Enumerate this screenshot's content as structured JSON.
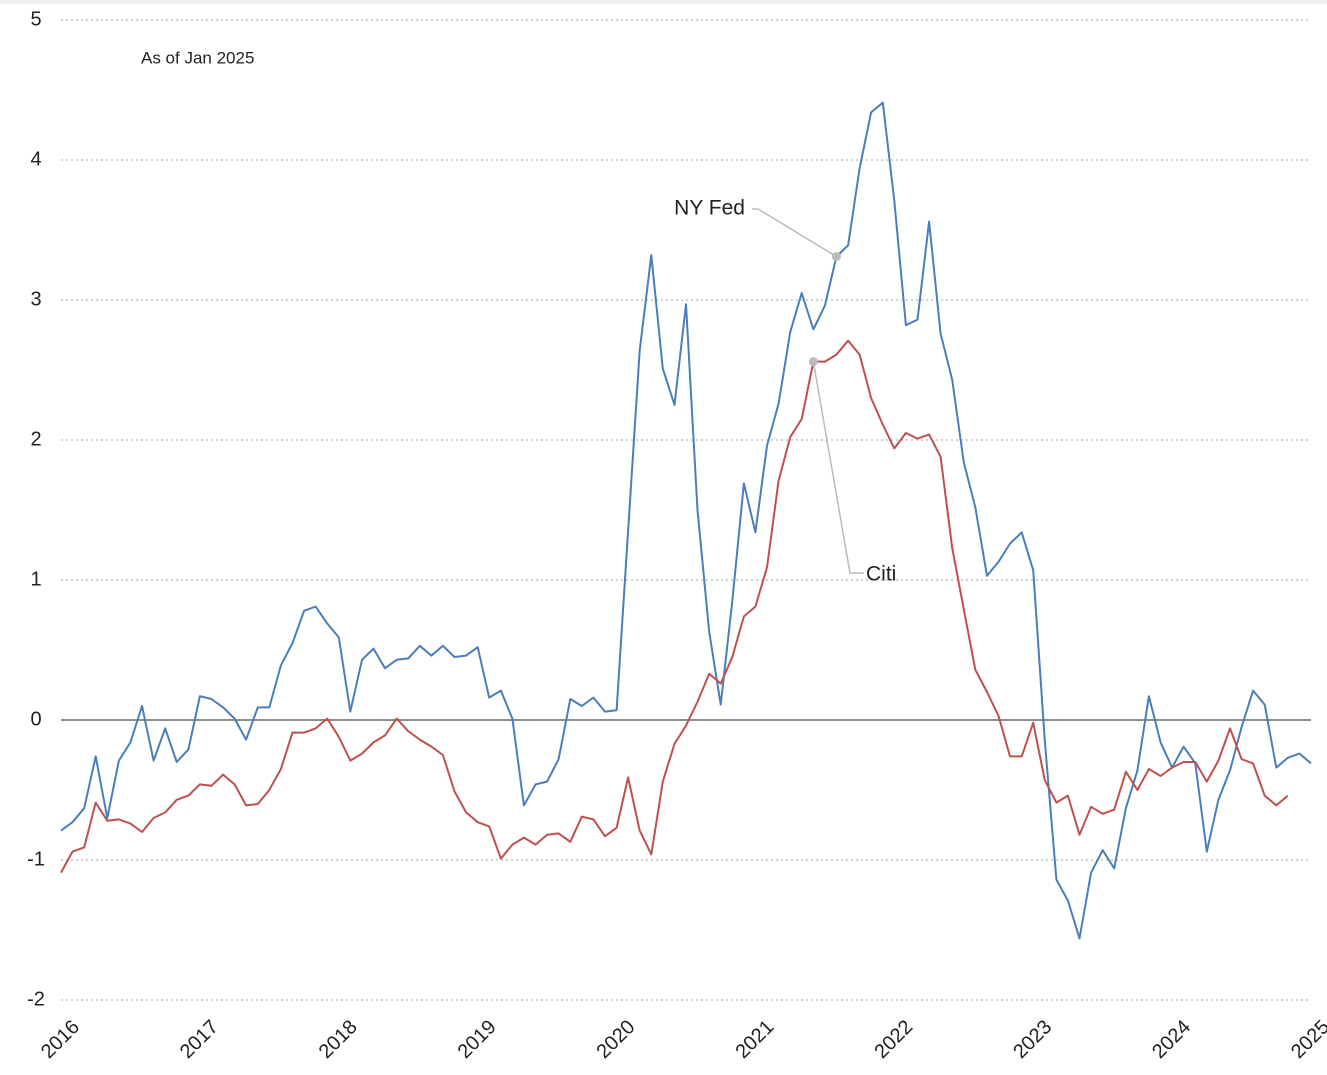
{
  "chart_data": {
    "type": "line",
    "annotation": "As of Jan 2025",
    "xlim": [
      2016,
      2025
    ],
    "xticks": [
      2016,
      2017,
      2018,
      2019,
      2020,
      2021,
      2022,
      2023,
      2024,
      2025
    ],
    "ylim": [
      -2,
      5
    ],
    "yticks": [
      -2,
      -1,
      0,
      1,
      2,
      3,
      4,
      5
    ],
    "grid": true,
    "x": [
      2016,
      2016.083,
      2016.167,
      2016.25,
      2016.333,
      2016.417,
      2016.5,
      2016.583,
      2016.667,
      2016.75,
      2016.833,
      2016.917,
      2017,
      2017.083,
      2017.167,
      2017.25,
      2017.333,
      2017.417,
      2017.5,
      2017.583,
      2017.667,
      2017.75,
      2017.833,
      2017.917,
      2018,
      2018.083,
      2018.167,
      2018.25,
      2018.333,
      2018.417,
      2018.5,
      2018.583,
      2018.667,
      2018.75,
      2018.833,
      2018.917,
      2019,
      2019.083,
      2019.167,
      2019.25,
      2019.333,
      2019.417,
      2019.5,
      2019.583,
      2019.667,
      2019.75,
      2019.833,
      2019.917,
      2020,
      2020.083,
      2020.167,
      2020.25,
      2020.333,
      2020.417,
      2020.5,
      2020.583,
      2020.667,
      2020.75,
      2020.833,
      2020.917,
      2021,
      2021.083,
      2021.167,
      2021.25,
      2021.333,
      2021.417,
      2021.5,
      2021.583,
      2021.667,
      2021.75,
      2021.833,
      2021.917,
      2022,
      2022.083,
      2022.167,
      2022.25,
      2022.333,
      2022.417,
      2022.5,
      2022.583,
      2022.667,
      2022.75,
      2022.833,
      2022.917,
      2023,
      2023.083,
      2023.167,
      2023.25,
      2023.333,
      2023.417,
      2023.5,
      2023.583,
      2023.667,
      2023.75,
      2023.833,
      2023.917,
      2024,
      2024.083,
      2024.167,
      2024.25,
      2024.333,
      2024.417,
      2024.5,
      2024.583,
      2024.667,
      2024.75,
      2024.833,
      2024.917,
      2025
    ],
    "series": [
      {
        "name": "NY Fed",
        "color": "#4a7ebb",
        "values": [
          -0.79,
          -0.73,
          -0.63,
          -0.26,
          -0.7,
          -0.29,
          -0.16,
          0.1,
          -0.29,
          -0.06,
          -0.3,
          -0.21,
          0.17,
          0.15,
          0.09,
          0.01,
          -0.14,
          0.09,
          0.09,
          0.39,
          0.55,
          0.78,
          0.81,
          0.69,
          0.59,
          0.06,
          0.43,
          0.51,
          0.37,
          0.43,
          0.44,
          0.53,
          0.46,
          0.53,
          0.45,
          0.46,
          0.52,
          0.16,
          0.21,
          0.01,
          -0.61,
          -0.46,
          -0.44,
          -0.28,
          0.15,
          0.1,
          0.16,
          0.06,
          0.07,
          1.35,
          2.64,
          3.32,
          2.51,
          2.25,
          2.97,
          1.5,
          0.63,
          0.11,
          0.85,
          1.69,
          1.34,
          1.96,
          2.26,
          2.77,
          3.05,
          2.79,
          2.96,
          3.31,
          3.39,
          3.94,
          4.34,
          4.41,
          3.71,
          2.82,
          2.86,
          3.56,
          2.76,
          2.43,
          1.84,
          1.52,
          1.03,
          1.13,
          1.26,
          1.34,
          1.07,
          -0.15,
          -1.14,
          -1.29,
          -1.56,
          -1.09,
          -0.93,
          -1.06,
          -0.63,
          -0.36,
          0.17,
          -0.16,
          -0.34,
          -0.19,
          -0.31,
          -0.94,
          -0.57,
          -0.36,
          -0.05,
          0.21,
          0.11,
          -0.34,
          -0.27,
          -0.24,
          -0.31
        ]
      },
      {
        "name": "Citi",
        "color": "#c0504d",
        "values": [
          -1.09,
          -0.94,
          -0.91,
          -0.59,
          -0.72,
          -0.71,
          -0.74,
          -0.8,
          -0.7,
          -0.66,
          -0.57,
          -0.54,
          -0.46,
          -0.47,
          -0.39,
          -0.46,
          -0.61,
          -0.6,
          -0.5,
          -0.35,
          -0.09,
          -0.09,
          -0.06,
          0.01,
          -0.12,
          -0.29,
          -0.24,
          -0.16,
          -0.11,
          0.01,
          -0.08,
          -0.14,
          -0.19,
          -0.25,
          -0.51,
          -0.66,
          -0.73,
          -0.76,
          -0.99,
          -0.89,
          -0.84,
          -0.89,
          -0.82,
          -0.81,
          -0.87,
          -0.69,
          -0.71,
          -0.83,
          -0.77,
          -0.41,
          -0.79,
          -0.96,
          -0.44,
          -0.17,
          -0.04,
          0.13,
          0.33,
          0.26,
          0.45,
          0.74,
          0.81,
          1.09,
          1.71,
          2.02,
          2.15,
          2.56,
          2.56,
          2.61,
          2.71,
          2.61,
          2.3,
          2.11,
          1.94,
          2.05,
          2.01,
          2.04,
          1.88,
          1.23,
          0.79,
          0.36,
          0.2,
          0.03,
          -0.26,
          -0.26,
          -0.02,
          -0.43,
          -0.59,
          -0.54,
          -0.82,
          -0.62,
          -0.67,
          -0.64,
          -0.37,
          -0.5,
          -0.35,
          -0.4,
          -0.34,
          -0.3,
          -0.3,
          -0.44,
          -0.29,
          -0.06,
          -0.28,
          -0.31,
          -0.54,
          -0.61,
          -0.54,
          null,
          null
        ]
      }
    ]
  }
}
